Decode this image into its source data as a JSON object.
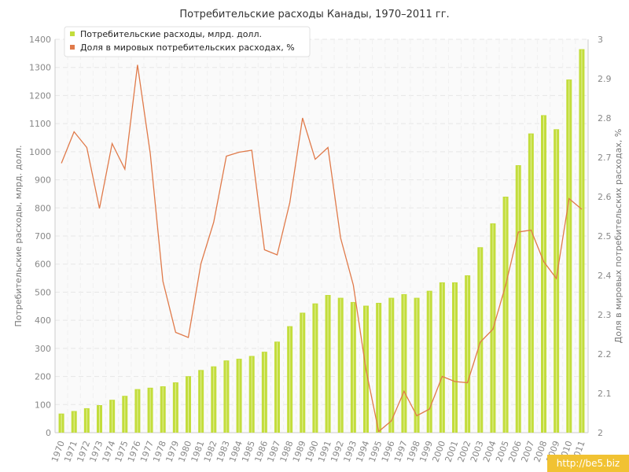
{
  "chart_data": {
    "type": "bar+line",
    "title": "Потребительские расходы Канады, 1970–2011 гг.",
    "ylabel_left": "Потребительские расходы, млрд. долл.",
    "ylabel_right": "Доля в мировых потребительских расходах, %",
    "ylim_left": [
      0,
      1400
    ],
    "ylim_right": [
      2,
      3
    ],
    "yticks_left": [
      "0",
      "100",
      "200",
      "300",
      "400",
      "500",
      "600",
      "700",
      "800",
      "900",
      "1000",
      "1100",
      "1200",
      "1300",
      "1400"
    ],
    "yticks_right": [
      "2",
      "2.1",
      "2.2",
      "2.3",
      "2.4",
      "2.5",
      "2.6",
      "2.7",
      "2.8",
      "2.9",
      "3"
    ],
    "grid": true,
    "legend_position": "top-left",
    "categories": [
      "1970",
      "1971",
      "1972",
      "1973",
      "1974",
      "1975",
      "1976",
      "1977",
      "1978",
      "1979",
      "1980",
      "1981",
      "1982",
      "1983",
      "1984",
      "1985",
      "1986",
      "1987",
      "1988",
      "1989",
      "1990",
      "1991",
      "1992",
      "1993",
      "1994",
      "1995",
      "1996",
      "1997",
      "1998",
      "1999",
      "2000",
      "2001",
      "2002",
      "2003",
      "2004",
      "2005",
      "2006",
      "2007",
      "2008",
      "2009",
      "2010",
      "2011"
    ],
    "series": [
      {
        "name": "Потребительские расходы, млрд. долл.",
        "kind": "bar",
        "axis": "left",
        "color": "#c3dd3c",
        "values": [
          68,
          77,
          87,
          98,
          117,
          131,
          155,
          160,
          165,
          179,
          201,
          223,
          236,
          257,
          263,
          273,
          288,
          324,
          379,
          427,
          460,
          490,
          480,
          465,
          452,
          462,
          480,
          493,
          480,
          505,
          535,
          535,
          560,
          660,
          745,
          840,
          952,
          1065,
          1130,
          1080,
          1257,
          1365
        ]
      },
      {
        "name": "Доля в мировых потребительских расходах, %",
        "kind": "line",
        "axis": "right",
        "color": "#e07a4a",
        "values": [
          2.685,
          2.765,
          2.725,
          2.57,
          2.735,
          2.67,
          2.935,
          2.71,
          2.385,
          2.255,
          2.242,
          2.43,
          2.535,
          2.703,
          2.713,
          2.718,
          2.465,
          2.452,
          2.585,
          2.8,
          2.695,
          2.725,
          2.495,
          2.375,
          2.16,
          2.003,
          2.03,
          2.105,
          2.043,
          2.06,
          2.143,
          2.13,
          2.127,
          2.23,
          2.263,
          2.375,
          2.51,
          2.515,
          2.435,
          2.392,
          2.595,
          2.568
        ]
      }
    ]
  },
  "watermark": "http://be5.biz"
}
